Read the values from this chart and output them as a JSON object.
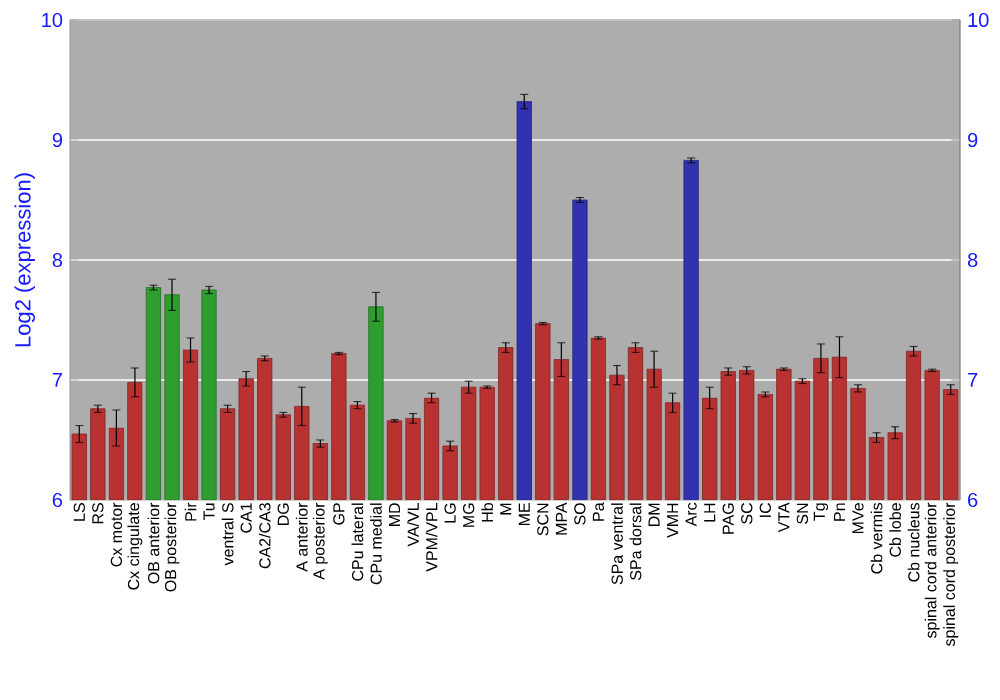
{
  "chart_data": {
    "type": "bar",
    "ylabel": "Log2 (expression)",
    "categories": [
      "LS",
      "RS",
      "Cx motor",
      "Cx cingulate",
      "OB anterior",
      "OB posterior",
      "Pir",
      "Tu",
      "ventral S",
      "CA1",
      "CA2/CA3",
      "DG",
      "A anterior",
      "A posterior",
      "GP",
      "CPu lateral",
      "CPu medial",
      "MD",
      "VA/VL",
      "VPM/VPL",
      "LG",
      "MG",
      "Hb",
      "M",
      "ME",
      "SCN",
      "MPA",
      "SO",
      "Pa",
      "SPa ventral",
      "SPa dorsal",
      "DM",
      "VMH",
      "Arc",
      "LH",
      "PAG",
      "SC",
      "IC",
      "VTA",
      "SN",
      "Tg",
      "Pn",
      "MVe",
      "Cb vermis",
      "Cb lobe",
      "Cb nucleus",
      "spinal cord anterior",
      "spinal cord posterior"
    ],
    "values": [
      6.55,
      6.76,
      6.6,
      6.98,
      7.77,
      7.71,
      7.25,
      7.75,
      6.76,
      7.01,
      7.18,
      6.71,
      6.78,
      6.47,
      7.22,
      6.79,
      7.61,
      6.66,
      6.68,
      6.85,
      6.45,
      6.94,
      6.94,
      7.27,
      9.32,
      7.47,
      7.17,
      8.5,
      7.35,
      7.04,
      7.27,
      7.09,
      6.81,
      8.83,
      6.85,
      7.07,
      7.08,
      6.88,
      7.09,
      6.99,
      7.18,
      7.19,
      6.93,
      6.52,
      6.56,
      7.24,
      7.08,
      6.92
    ],
    "errors": [
      0.07,
      0.03,
      0.15,
      0.12,
      0.02,
      0.13,
      0.1,
      0.03,
      0.03,
      0.06,
      0.02,
      0.02,
      0.16,
      0.03,
      0.01,
      0.03,
      0.12,
      0.01,
      0.04,
      0.04,
      0.04,
      0.05,
      0.01,
      0.04,
      0.06,
      0.01,
      0.14,
      0.02,
      0.01,
      0.08,
      0.04,
      0.15,
      0.08,
      0.02,
      0.09,
      0.03,
      0.03,
      0.02,
      0.01,
      0.02,
      0.12,
      0.17,
      0.03,
      0.04,
      0.05,
      0.04,
      0.01,
      0.04
    ],
    "colors": [
      "#b83232",
      "#b83232",
      "#b83232",
      "#b83232",
      "#2e9e2e",
      "#2e9e2e",
      "#b83232",
      "#2e9e2e",
      "#b83232",
      "#b83232",
      "#b83232",
      "#b83232",
      "#b83232",
      "#b83232",
      "#b83232",
      "#b83232",
      "#2e9e2e",
      "#b83232",
      "#b83232",
      "#b83232",
      "#b83232",
      "#b83232",
      "#b83232",
      "#b83232",
      "#3232b0",
      "#b83232",
      "#b83232",
      "#3232b0",
      "#b83232",
      "#b83232",
      "#b83232",
      "#b83232",
      "#b83232",
      "#3232b0",
      "#b83232",
      "#b83232",
      "#b83232",
      "#b83232",
      "#b83232",
      "#b83232",
      "#b83232",
      "#b83232",
      "#b83232",
      "#b83232",
      "#b83232",
      "#b83232",
      "#b83232",
      "#b83232"
    ],
    "ylim": [
      6,
      10
    ],
    "yticks": [
      6,
      7,
      8,
      9,
      10
    ],
    "y2lim": [
      6,
      10
    ],
    "y2ticks": [
      6,
      7,
      8,
      9,
      10
    ],
    "grid": "y"
  }
}
